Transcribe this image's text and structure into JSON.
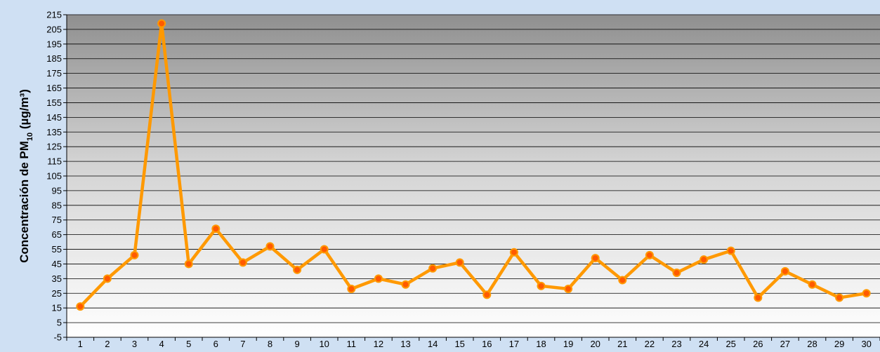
{
  "chart_data": {
    "type": "line",
    "ylabel_main": "Concentración de PM",
    "ylabel_sub": "10",
    "ylabel_unit": " (µg/m³)",
    "x": [
      1,
      2,
      3,
      4,
      5,
      6,
      7,
      8,
      9,
      10,
      11,
      12,
      13,
      14,
      15,
      16,
      17,
      18,
      19,
      20,
      21,
      22,
      23,
      24,
      25,
      26,
      27,
      28,
      29,
      30
    ],
    "values": [
      16,
      35,
      51,
      209,
      45,
      69,
      46,
      57,
      41,
      55,
      28,
      35,
      31,
      42,
      46,
      24,
      53,
      30,
      28,
      49,
      34,
      51,
      39,
      48,
      54,
      22,
      40,
      31,
      22,
      25
    ],
    "ylim": [
      -5,
      215
    ],
    "yticks": [
      -5,
      5,
      15,
      25,
      35,
      45,
      55,
      65,
      75,
      85,
      95,
      105,
      115,
      125,
      135,
      145,
      155,
      165,
      175,
      185,
      195,
      205,
      215
    ],
    "grid": true,
    "colors": {
      "line": "#ff9900",
      "marker_fill": "#ff5a00",
      "marker_stroke": "#ff9900",
      "band_top": "#8f8f8f",
      "band_bottom": "#ffffff",
      "page_background": "#cfe0f3"
    }
  }
}
